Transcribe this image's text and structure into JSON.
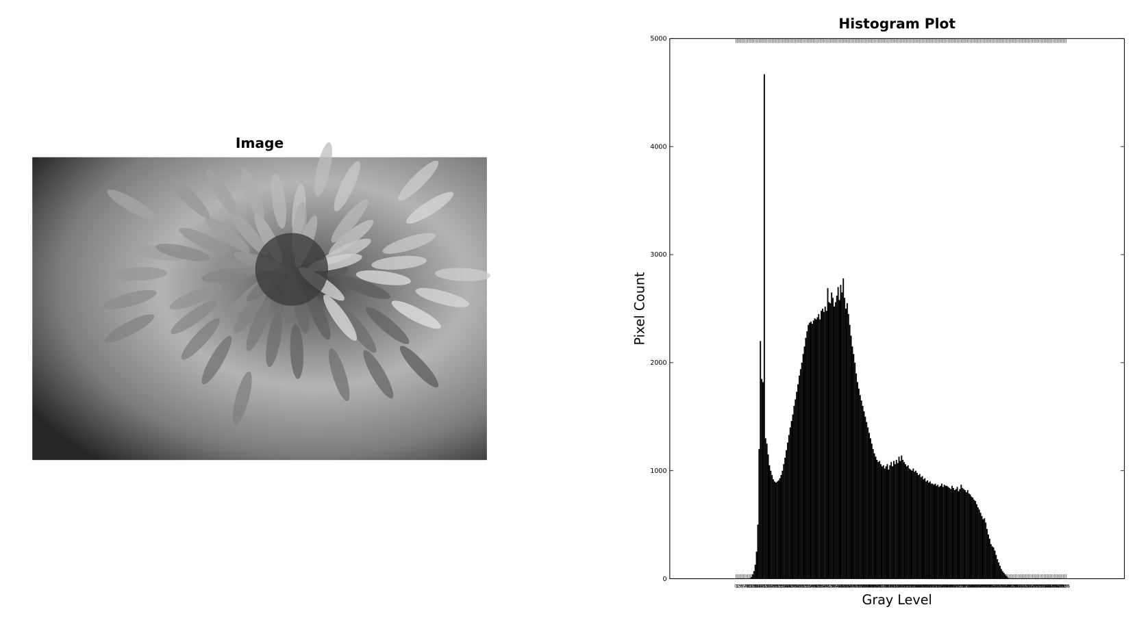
{
  "image": {
    "title": "Image"
  },
  "chart_data": {
    "type": "histogram",
    "title": "Histogram Plot",
    "x_label": "Gray Level",
    "y_label": "Pixel Count",
    "color": "#000000",
    "xlim": [
      -51,
      300
    ],
    "ylim": [
      0,
      5000
    ],
    "yticks": [
      0,
      1000,
      2000,
      3000,
      4000,
      5000
    ],
    "x": [
      0,
      1,
      2,
      3,
      4,
      5,
      6,
      7,
      8,
      9,
      10,
      11,
      12,
      13,
      14,
      15,
      16,
      17,
      18,
      19,
      20,
      21,
      22,
      23,
      24,
      25,
      26,
      27,
      28,
      29,
      30,
      31,
      32,
      33,
      34,
      35,
      36,
      37,
      38,
      39,
      40,
      41,
      42,
      43,
      44,
      45,
      46,
      47,
      48,
      49,
      50,
      51,
      52,
      53,
      54,
      55,
      56,
      57,
      58,
      59,
      60,
      61,
      62,
      63,
      64,
      65,
      66,
      67,
      68,
      69,
      70,
      71,
      72,
      73,
      74,
      75,
      76,
      77,
      78,
      79,
      80,
      81,
      82,
      83,
      84,
      85,
      86,
      87,
      88,
      89,
      90,
      91,
      92,
      93,
      94,
      95,
      96,
      97,
      98,
      99,
      100,
      101,
      102,
      103,
      104,
      105,
      106,
      107,
      108,
      109,
      110,
      111,
      112,
      113,
      114,
      115,
      116,
      117,
      118,
      119,
      120,
      121,
      122,
      123,
      124,
      125,
      126,
      127,
      128,
      129,
      130,
      131,
      132,
      133,
      134,
      135,
      136,
      137,
      138,
      139,
      140,
      141,
      142,
      143,
      144,
      145,
      146,
      147,
      148,
      149,
      150,
      151,
      152,
      153,
      154,
      155,
      156,
      157,
      158,
      159,
      160,
      161,
      162,
      163,
      164,
      165,
      166,
      167,
      168,
      169,
      170,
      171,
      172,
      173,
      174,
      175,
      176,
      177,
      178,
      179,
      180,
      181,
      182,
      183,
      184,
      185,
      186,
      187,
      188,
      189,
      190,
      191,
      192,
      193,
      194,
      195,
      196,
      197,
      198,
      199,
      200,
      201,
      202,
      203,
      204,
      205,
      206,
      207,
      208,
      209,
      210,
      211,
      212,
      213,
      214,
      215,
      216,
      217,
      218,
      219,
      220,
      221,
      222,
      223,
      224,
      225,
      226,
      227,
      228,
      229,
      230,
      231,
      232,
      233,
      234,
      235,
      236,
      237,
      238,
      239,
      240,
      241,
      242,
      243,
      244,
      245,
      246,
      247,
      248,
      249,
      250,
      251,
      252,
      253,
      254,
      255
    ],
    "xticks": [
      0,
      1,
      2,
      3,
      4,
      5,
      6,
      7,
      8,
      9,
      10,
      11,
      12,
      13,
      14,
      15,
      16,
      17,
      18,
      19,
      20,
      21,
      22,
      23,
      24,
      25,
      26,
      27,
      28,
      29,
      30,
      31,
      32,
      33,
      34,
      35,
      36,
      37,
      38,
      39,
      40,
      41,
      42,
      43,
      44,
      45,
      46,
      47,
      48,
      49,
      50,
      51,
      52,
      53,
      54,
      55,
      56,
      57,
      58,
      59,
      60,
      61,
      62,
      63,
      64,
      65,
      66,
      67,
      68,
      69,
      70,
      71,
      72,
      73,
      74,
      75,
      76,
      77,
      78,
      79,
      80,
      81,
      82,
      83,
      84,
      85,
      86,
      87,
      88,
      89,
      90,
      91,
      92,
      93,
      94,
      95,
      96,
      97,
      98,
      99,
      100,
      101,
      102,
      103,
      104,
      105,
      106,
      107,
      108,
      109,
      110,
      111,
      112,
      113,
      114,
      115,
      116,
      117,
      118,
      119,
      120,
      121,
      122,
      123,
      124,
      125,
      126,
      127,
      128,
      129,
      130,
      131,
      132,
      133,
      134,
      135,
      136,
      137,
      138,
      139,
      140,
      141,
      142,
      143,
      144,
      145,
      146,
      147,
      148,
      149,
      150,
      151,
      152,
      153,
      154,
      155,
      156,
      157,
      158,
      159,
      160,
      161,
      162,
      163,
      164,
      165,
      166,
      167,
      168,
      169,
      170,
      171,
      172,
      173,
      174,
      175,
      176,
      177,
      178,
      179,
      180,
      181,
      182,
      183,
      184,
      185,
      186,
      187,
      188,
      189,
      190,
      191,
      192,
      193,
      194,
      195,
      196,
      197,
      198,
      199,
      200,
      201,
      202,
      203,
      204,
      205,
      206,
      207,
      208,
      209,
      210,
      211,
      212,
      213,
      214,
      215,
      216,
      217,
      218,
      219,
      220,
      221,
      222,
      223,
      224,
      225,
      226,
      227,
      228,
      229,
      230,
      231,
      232,
      233,
      234,
      235,
      236,
      237,
      238,
      239,
      240,
      241,
      242,
      243,
      244,
      245,
      246,
      247,
      248,
      249,
      250,
      251,
      252,
      253,
      254,
      255
    ],
    "values": [
      0,
      0,
      0,
      0,
      0,
      0,
      0,
      0,
      0,
      0,
      0,
      5,
      15,
      40,
      70,
      130,
      250,
      500,
      1200,
      2200,
      1850,
      1820,
      4670,
      1300,
      1250,
      1150,
      1050,
      1000,
      960,
      920,
      900,
      890,
      900,
      910,
      930,
      960,
      1000,
      1060,
      1120,
      1190,
      1260,
      1330,
      1400,
      1460,
      1520,
      1600,
      1660,
      1730,
      1800,
      1880,
      1940,
      2000,
      2080,
      2150,
      2230,
      2290,
      2350,
      2370,
      2380,
      2360,
      2390,
      2410,
      2400,
      2420,
      2450,
      2400,
      2480,
      2500,
      2470,
      2520,
      2480,
      2690,
      2560,
      2550,
      2650,
      2600,
      2520,
      2560,
      2620,
      2700,
      2580,
      2720,
      2650,
      2780,
      2600,
      2500,
      2550,
      2450,
      2350,
      2250,
      2150,
      2080,
      2000,
      1900,
      1820,
      1760,
      1700,
      1650,
      1600,
      1550,
      1500,
      1450,
      1400,
      1350,
      1300,
      1250,
      1200,
      1160,
      1130,
      1100,
      1080,
      1090,
      1060,
      1040,
      1050,
      1020,
      1040,
      1060,
      1010,
      1050,
      1080,
      1040,
      1090,
      1060,
      1100,
      1070,
      1130,
      1090,
      1140,
      1100,
      1080,
      1060,
      1040,
      1050,
      1020,
      1010,
      1000,
      1020,
      990,
      1000,
      980,
      960,
      970,
      940,
      950,
      920,
      930,
      900,
      910,
      890,
      900,
      880,
      880,
      870,
      880,
      860,
      870,
      850,
      860,
      880,
      850,
      870,
      860,
      860,
      850,
      840,
      830,
      860,
      840,
      820,
      830,
      850,
      810,
      830,
      870,
      840,
      830,
      820,
      800,
      820,
      790,
      780,
      760,
      750,
      730,
      720,
      690,
      660,
      640,
      610,
      580,
      550,
      560,
      520,
      460,
      410,
      370,
      320,
      300,
      290,
      260,
      220,
      180,
      150,
      120,
      90,
      70,
      55,
      40,
      25,
      12,
      5,
      0,
      0,
      0,
      0,
      0,
      0,
      0,
      0,
      0,
      0,
      0,
      0,
      0,
      0,
      0,
      0,
      0,
      0,
      0,
      0,
      0,
      0,
      0,
      0,
      0,
      0,
      0,
      0,
      0,
      0,
      0,
      0,
      0,
      0,
      0,
      0,
      0,
      0,
      0,
      0,
      0,
      0,
      0,
      0
    ]
  }
}
